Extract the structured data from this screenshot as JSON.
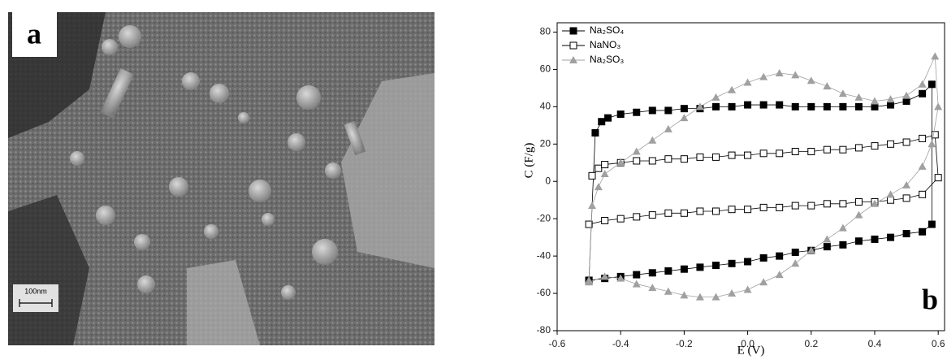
{
  "panel_a": {
    "label": "a",
    "scale_bar": "100nm"
  },
  "chart_data": {
    "type": "line",
    "panel_label": "b",
    "x_label": "E (V)",
    "y_label": "C (F/g)",
    "xlim": [
      -0.6,
      0.62
    ],
    "ylim": [
      -80,
      85
    ],
    "xticks": [
      -0.6,
      -0.4,
      -0.2,
      {
        "value": 0,
        "label": "0.0"
      },
      0.2,
      0.4,
      0.6
    ],
    "yticks": [
      -80,
      -60,
      -40,
      -20,
      0,
      20,
      40,
      60,
      80
    ],
    "legend": "top-left",
    "series": [
      {
        "name": "Na₂SO₄",
        "color": "#000000",
        "marker": "square-filled",
        "x": [
          -0.5,
          -0.48,
          -0.46,
          -0.44,
          -0.4,
          -0.35,
          -0.3,
          -0.25,
          -0.2,
          -0.15,
          -0.1,
          -0.05,
          0,
          0.05,
          0.1,
          0.15,
          0.2,
          0.25,
          0.3,
          0.35,
          0.4,
          0.45,
          0.5,
          0.55,
          0.58,
          0.58,
          0.55,
          0.5,
          0.45,
          0.4,
          0.35,
          0.3,
          0.25,
          0.2,
          0.15,
          0.1,
          0.05,
          0,
          -0.05,
          -0.1,
          -0.15,
          -0.2,
          -0.25,
          -0.3,
          -0.35,
          -0.4,
          -0.45,
          -0.5
        ],
        "values": [
          -53,
          26,
          32,
          34,
          36,
          37,
          38,
          38,
          39,
          39,
          40,
          40,
          41,
          41,
          41,
          40,
          40,
          40,
          40,
          40,
          40,
          41,
          43,
          47,
          52,
          -23,
          -27,
          -28,
          -30,
          -31,
          -32,
          -34,
          -35,
          -37,
          -38,
          -40,
          -41,
          -43,
          -44,
          -45,
          -46,
          -47,
          -48,
          -49,
          -50,
          -51,
          -52,
          -53
        ]
      },
      {
        "name": "NaNO₃",
        "color": "#000000",
        "marker": "square-open",
        "x": [
          -0.49,
          -0.47,
          -0.45,
          -0.4,
          -0.35,
          -0.3,
          -0.25,
          -0.2,
          -0.15,
          -0.1,
          -0.05,
          0,
          0.05,
          0.1,
          0.15,
          0.2,
          0.25,
          0.3,
          0.35,
          0.4,
          0.45,
          0.5,
          0.55,
          0.59,
          0.6,
          0.55,
          0.5,
          0.45,
          0.4,
          0.35,
          0.3,
          0.25,
          0.2,
          0.15,
          0.1,
          0.05,
          0,
          -0.05,
          -0.1,
          -0.15,
          -0.2,
          -0.25,
          -0.3,
          -0.35,
          -0.4,
          -0.45,
          -0.5
        ],
        "values": [
          3,
          7,
          9,
          10,
          11,
          11,
          12,
          12,
          13,
          13,
          14,
          14,
          15,
          15,
          16,
          16,
          17,
          17,
          18,
          19,
          20,
          21,
          23,
          25,
          2,
          -7,
          -9,
          -10,
          -11,
          -11,
          -12,
          -12,
          -13,
          -13,
          -14,
          -14,
          -15,
          -15,
          -16,
          -16,
          -17,
          -17,
          -18,
          -19,
          -20,
          -21,
          -23
        ]
      },
      {
        "name": "Na₂SO₃",
        "color": "#a0a0a0",
        "marker": "triangle",
        "x": [
          -0.5,
          -0.49,
          -0.47,
          -0.45,
          -0.4,
          -0.35,
          -0.3,
          -0.25,
          -0.2,
          -0.15,
          -0.1,
          -0.05,
          0,
          0.05,
          0.1,
          0.15,
          0.2,
          0.25,
          0.3,
          0.35,
          0.4,
          0.45,
          0.5,
          0.55,
          0.59,
          0.6,
          0.58,
          0.55,
          0.5,
          0.45,
          0.4,
          0.35,
          0.3,
          0.25,
          0.2,
          0.15,
          0.1,
          0.05,
          0,
          -0.05,
          -0.1,
          -0.15,
          -0.2,
          -0.25,
          -0.3,
          -0.35,
          -0.4,
          -0.45,
          -0.5
        ],
        "values": [
          -53,
          -13,
          -3,
          4,
          10,
          16,
          22,
          28,
          34,
          40,
          45,
          49,
          53,
          56,
          58,
          57,
          54,
          51,
          47,
          45,
          43,
          44,
          46,
          52,
          67,
          40,
          20,
          8,
          -2,
          -7,
          -12,
          -18,
          -25,
          -31,
          -37,
          -44,
          -50,
          -54,
          -58,
          -60,
          -62,
          -62,
          -61,
          -59,
          -57,
          -55,
          -52,
          -51,
          -54
        ]
      }
    ]
  }
}
